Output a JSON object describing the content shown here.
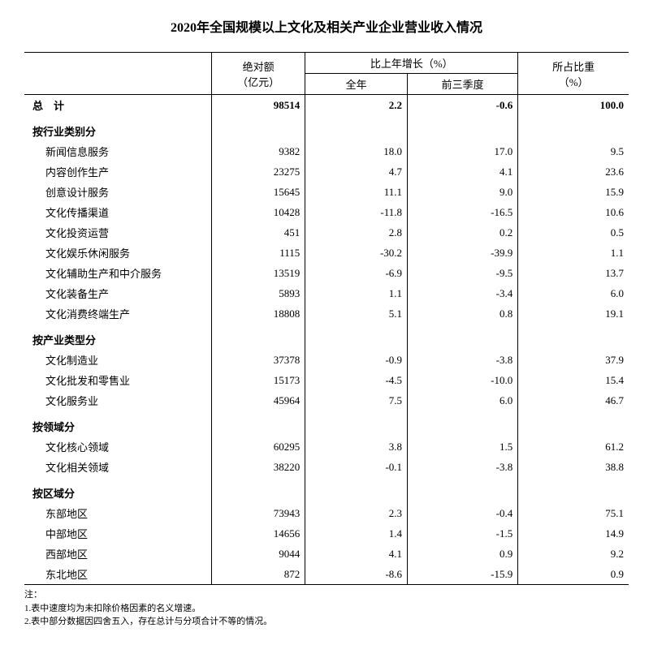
{
  "title": "2020年全国规模以上文化及相关产业企业营业收入情况",
  "headers": {
    "col1_l1": "绝对额",
    "col1_l2": "（亿元）",
    "col2_group": "比上年增长（%）",
    "col2_a": "全年",
    "col2_b": "前三季度",
    "col3_l1": "所占比重",
    "col3_l2": "（%）"
  },
  "total": {
    "label": "总　计",
    "abs": "98514",
    "yoy_full": "2.2",
    "yoy_q3": "-0.6",
    "share": "100.0"
  },
  "sections": [
    {
      "header": "按行业类别分",
      "rows": [
        {
          "label": "新闻信息服务",
          "abs": "9382",
          "yoy_full": "18.0",
          "yoy_q3": "17.0",
          "share": "9.5"
        },
        {
          "label": "内容创作生产",
          "abs": "23275",
          "yoy_full": "4.7",
          "yoy_q3": "4.1",
          "share": "23.6"
        },
        {
          "label": "创意设计服务",
          "abs": "15645",
          "yoy_full": "11.1",
          "yoy_q3": "9.0",
          "share": "15.9"
        },
        {
          "label": "文化传播渠道",
          "abs": "10428",
          "yoy_full": "-11.8",
          "yoy_q3": "-16.5",
          "share": "10.6"
        },
        {
          "label": "文化投资运营",
          "abs": "451",
          "yoy_full": "2.8",
          "yoy_q3": "0.2",
          "share": "0.5"
        },
        {
          "label": "文化娱乐休闲服务",
          "abs": "1115",
          "yoy_full": "-30.2",
          "yoy_q3": "-39.9",
          "share": "1.1"
        },
        {
          "label": "文化辅助生产和中介服务",
          "abs": "13519",
          "yoy_full": "-6.9",
          "yoy_q3": "-9.5",
          "share": "13.7"
        },
        {
          "label": "文化装备生产",
          "abs": "5893",
          "yoy_full": "1.1",
          "yoy_q3": "-3.4",
          "share": "6.0"
        },
        {
          "label": "文化消费终端生产",
          "abs": "18808",
          "yoy_full": "5.1",
          "yoy_q3": "0.8",
          "share": "19.1"
        }
      ]
    },
    {
      "header": "按产业类型分",
      "rows": [
        {
          "label": "文化制造业",
          "abs": "37378",
          "yoy_full": "-0.9",
          "yoy_q3": "-3.8",
          "share": "37.9"
        },
        {
          "label": "文化批发和零售业",
          "abs": "15173",
          "yoy_full": "-4.5",
          "yoy_q3": "-10.0",
          "share": "15.4"
        },
        {
          "label": "文化服务业",
          "abs": "45964",
          "yoy_full": "7.5",
          "yoy_q3": "6.0",
          "share": "46.7"
        }
      ]
    },
    {
      "header": "按领域分",
      "rows": [
        {
          "label": "文化核心领域",
          "abs": "60295",
          "yoy_full": "3.8",
          "yoy_q3": "1.5",
          "share": "61.2"
        },
        {
          "label": "文化相关领域",
          "abs": "38220",
          "yoy_full": "-0.1",
          "yoy_q3": "-3.8",
          "share": "38.8"
        }
      ]
    },
    {
      "header": "按区域分",
      "rows": [
        {
          "label": "东部地区",
          "abs": "73943",
          "yoy_full": "2.3",
          "yoy_q3": "-0.4",
          "share": "75.1"
        },
        {
          "label": "中部地区",
          "abs": "14656",
          "yoy_full": "1.4",
          "yoy_q3": "-1.5",
          "share": "14.9"
        },
        {
          "label": "西部地区",
          "abs": "9044",
          "yoy_full": "4.1",
          "yoy_q3": "0.9",
          "share": "9.2"
        },
        {
          "label": "东北地区",
          "abs": "872",
          "yoy_full": "-8.6",
          "yoy_q3": "-15.9",
          "share": "0.9"
        }
      ]
    }
  ],
  "notes": {
    "header": "注：",
    "line1": "1.表中速度均为未扣除价格因素的名义增速。",
    "line2": "2.表中部分数据因四舍五入，存在总计与分项合计不等的情况。"
  },
  "style": {
    "col_widths": {
      "label": 220,
      "abs": 110,
      "yoy_full": 120,
      "yoy_q3": 130,
      "share": 130
    }
  }
}
